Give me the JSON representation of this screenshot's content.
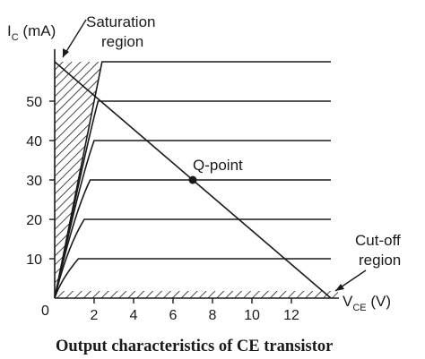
{
  "chart_data": {
    "type": "line",
    "title": "Output characteristics of CE transistor",
    "ylabel": {
      "main": "I",
      "sub": "C",
      "unit": " (mA)"
    },
    "xlabel": {
      "main": "V",
      "sub": "CE",
      "unit": " (V)"
    },
    "origin_label": "0",
    "x_ticks": [
      "2",
      "4",
      "6",
      "8",
      "10",
      "12"
    ],
    "y_ticks": [
      "10",
      "20",
      "30",
      "40",
      "50"
    ],
    "xlim": [
      0,
      14
    ],
    "ylim": [
      0,
      60
    ],
    "series": [
      {
        "values_x": [
          0,
          0.3,
          1.2,
          14
        ],
        "values_y": [
          0,
          6,
          10,
          10
        ]
      },
      {
        "values_x": [
          0,
          0.6,
          1.5,
          14
        ],
        "values_y": [
          0,
          14,
          20,
          20
        ]
      },
      {
        "values_x": [
          0,
          0.9,
          1.8,
          14
        ],
        "values_y": [
          0,
          22,
          30,
          30
        ]
      },
      {
        "values_x": [
          0,
          1.2,
          2.0,
          14
        ],
        "values_y": [
          0,
          30,
          40,
          40
        ]
      },
      {
        "values_x": [
          0,
          1.5,
          2.2,
          14
        ],
        "values_y": [
          0,
          38,
          50,
          50
        ]
      },
      {
        "values_x": [
          0,
          1.8,
          2.4,
          14
        ],
        "values_y": [
          0,
          46,
          60,
          60
        ]
      }
    ],
    "load_line": {
      "x": [
        0,
        14
      ],
      "y": [
        60,
        0
      ]
    },
    "q_point": {
      "x": 7,
      "y": 30,
      "label": "Q-point"
    },
    "annotations": {
      "saturation": [
        "Saturation",
        "region"
      ],
      "cutoff": [
        "Cut-off",
        "region"
      ]
    },
    "colors": {
      "ink": "#1a1a1a",
      "background": "#ffffff"
    }
  }
}
